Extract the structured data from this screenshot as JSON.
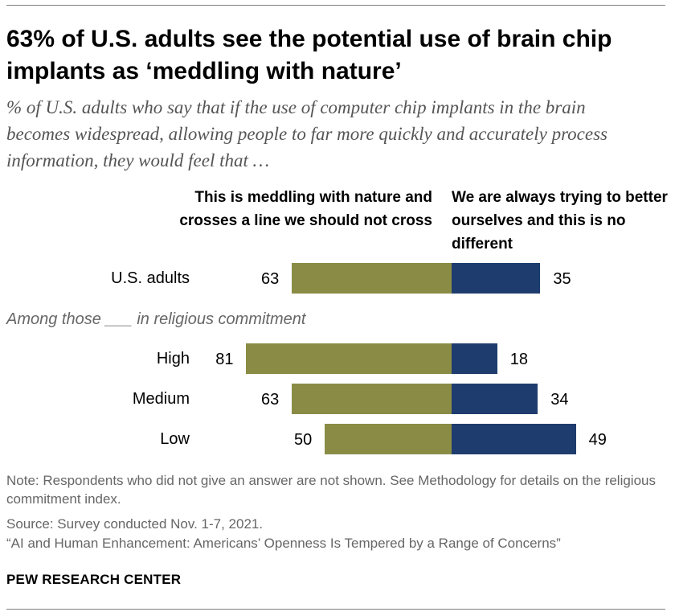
{
  "header": {
    "title": "63% of U.S. adults see the potential use of brain chip implants as ‘meddling with nature’",
    "subtitle": "% of U.S. adults who say that if the use of computer chip implants in the brain becomes widespread, allowing people to far more quickly and accurately process information, they would feel that …"
  },
  "chart_data": {
    "type": "bar",
    "orientation": "horizontal-diverging",
    "categories": [
      "U.S. adults",
      "High",
      "Medium",
      "Low"
    ],
    "group_label": "Among those ___ in religious commitment",
    "series": [
      {
        "name": "This is meddling with nature and crosses a line we should not cross",
        "values": [
          63,
          81,
          63,
          50
        ],
        "color": "#8a8c45"
      },
      {
        "name": "We are always trying to better ourselves and this is no different",
        "values": [
          35,
          18,
          34,
          49
        ],
        "color": "#1e3d6e"
      }
    ]
  },
  "footer": {
    "note": "Note: Respondents who did not give an answer are not shown. See Methodology for details on the religious commitment index.",
    "source": "Source: Survey conducted Nov. 1-7, 2021.",
    "report": "“AI and Human Enhancement: Americans’ Openness Is Tempered by a Range of Concerns”",
    "brand": "PEW RESEARCH CENTER"
  }
}
